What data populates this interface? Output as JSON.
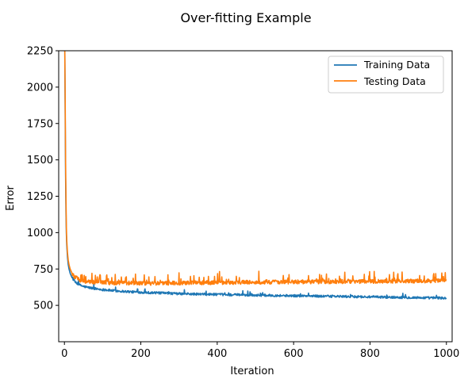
{
  "chart_data": {
    "type": "line",
    "title": "Over-fitting Example",
    "xlabel": "Iteration",
    "ylabel": "Error",
    "xlim": [
      -15,
      1015
    ],
    "ylim": [
      250,
      2250
    ],
    "xticks": [
      0,
      200,
      400,
      600,
      800,
      1000
    ],
    "yticks": [
      500,
      750,
      1000,
      1250,
      1500,
      1750,
      2000,
      2250
    ],
    "grid": false,
    "legend_position": "top-right",
    "series": [
      {
        "name": "Training Data",
        "color": "#1f77b4",
        "x": [
          1,
          2,
          3,
          4,
          5,
          6,
          8,
          10,
          12,
          15,
          20,
          25,
          30,
          40,
          50,
          60,
          80,
          100,
          125,
          150,
          175,
          200,
          250,
          300,
          350,
          400,
          450,
          500,
          550,
          600,
          650,
          700,
          750,
          800,
          850,
          900,
          950,
          1000
        ],
        "values": [
          2250,
          1800,
          1400,
          1150,
          1000,
          920,
          830,
          780,
          750,
          720,
          690,
          670,
          655,
          640,
          630,
          624,
          615,
          608,
          602,
          597,
          593,
          590,
          585,
          580,
          577,
          575,
          572,
          570,
          568,
          566,
          564,
          562,
          560,
          558,
          556,
          554,
          552,
          550
        ],
        "noise_amplitude": 8,
        "spike_probability": 0.04,
        "spike_amplitude": 30
      },
      {
        "name": "Testing Data",
        "color": "#ff7f0e",
        "x": [
          1,
          2,
          3,
          4,
          5,
          6,
          8,
          10,
          12,
          15,
          20,
          25,
          30,
          40,
          50,
          60,
          80,
          100,
          125,
          150,
          175,
          200,
          250,
          300,
          350,
          400,
          450,
          500,
          550,
          600,
          650,
          700,
          750,
          800,
          850,
          900,
          950,
          1000
        ],
        "values": [
          2250,
          1900,
          1500,
          1250,
          1050,
          950,
          860,
          810,
          780,
          750,
          720,
          700,
          690,
          675,
          668,
          664,
          660,
          657,
          655,
          654,
          653,
          652,
          652,
          653,
          655,
          657,
          658,
          659,
          660,
          661,
          662,
          663,
          664,
          665,
          666,
          667,
          668,
          670
        ],
        "noise_amplitude": 14,
        "spike_probability": 0.12,
        "spike_amplitude": 65
      }
    ]
  },
  "colors": {
    "training": "#1f77b4",
    "testing": "#ff7f0e"
  }
}
